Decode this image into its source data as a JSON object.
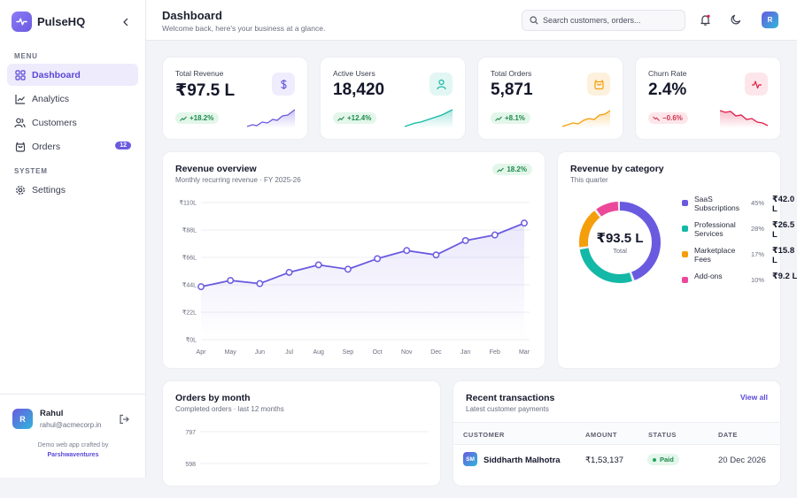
{
  "app": {
    "name": "PulseHQ"
  },
  "sidebar": {
    "menu_label": "MENU",
    "system_label": "SYSTEM",
    "items": [
      {
        "label": "Dashboard",
        "icon": "grid-icon",
        "active": true
      },
      {
        "label": "Analytics",
        "icon": "trend-chart-icon"
      },
      {
        "label": "Customers",
        "icon": "users-icon"
      },
      {
        "label": "Orders",
        "icon": "bag-icon",
        "badge": "12"
      }
    ],
    "system_items": [
      {
        "label": "Settings",
        "icon": "gear-icon"
      }
    ],
    "user": {
      "initial": "R",
      "name": "Rahul",
      "email": "rahul@acmecorp.in"
    },
    "credit_text": "Demo web app crafted by",
    "credit_link": "Parshwaventures"
  },
  "header": {
    "title": "Dashboard",
    "subtitle": "Welcome back, here's your business at a glance.",
    "search_placeholder": "Search customers, orders...",
    "avatar_initial": "R"
  },
  "kpis": [
    {
      "label": "Total Revenue",
      "value": "₹97.5 L",
      "change": "+18.2%",
      "trend": "up",
      "icon": "dollar-icon",
      "color": "#6a5ae0"
    },
    {
      "label": "Active Users",
      "value": "18,420",
      "change": "+12.4%",
      "trend": "up",
      "icon": "user-icon",
      "color": "#14b8a6"
    },
    {
      "label": "Total Orders",
      "value": "5,871",
      "change": "+8.1%",
      "trend": "up",
      "icon": "bag-icon",
      "color": "#f59e0b"
    },
    {
      "label": "Churn Rate",
      "value": "2.4%",
      "change": "−0.6%",
      "trend": "down",
      "icon": "pulse-icon",
      "color": "#e11d48"
    }
  ],
  "revenue_overview": {
    "title": "Revenue overview",
    "subtitle": "Monthly recurring revenue · FY 2025-26",
    "badge": "18.2%"
  },
  "revenue_by_category": {
    "title": "Revenue by category",
    "subtitle": "This quarter",
    "center_value": "₹93.5 L",
    "center_label": "Total"
  },
  "orders_by_month": {
    "title": "Orders by month",
    "subtitle": "Completed orders · last 12 months",
    "y_ticks": [
      "797",
      "598"
    ]
  },
  "transactions": {
    "title": "Recent transactions",
    "subtitle": "Latest customer payments",
    "view_all": "View all",
    "columns": [
      "CUSTOMER",
      "AMOUNT",
      "STATUS",
      "DATE"
    ],
    "rows": [
      {
        "initials": "SM",
        "customer": "Siddharth Malhotra",
        "amount": "₹1,53,137",
        "status": "Paid",
        "date": "20 Dec 2026"
      }
    ]
  },
  "chart_data": [
    {
      "type": "line",
      "title": "Revenue overview",
      "categories": [
        "Apr",
        "May",
        "Jun",
        "Jul",
        "Aug",
        "Sep",
        "Oct",
        "Nov",
        "Dec",
        "Jan",
        "Feb",
        "Mar"
      ],
      "y_tick_labels": [
        "₹0L",
        "₹22L",
        "₹44L",
        "₹66L",
        "₹88L",
        "₹110L"
      ],
      "ylim": [
        0,
        110
      ],
      "series": [
        {
          "values": [
            42.5,
            47.5,
            45.0,
            54.0,
            60.0,
            56.5,
            65.0,
            71.5,
            68.0,
            79.5,
            84.0,
            93.5
          ]
        }
      ],
      "grid": true,
      "color": "#6a5ae0"
    },
    {
      "type": "pie",
      "title": "Revenue by category",
      "slices": [
        {
          "label": "SaaS Subscriptions",
          "value": 45,
          "display_value": "₹42.0 L",
          "color": "#6a5ae0"
        },
        {
          "label": "Professional Services",
          "value": 28,
          "display_value": "₹26.5 L",
          "color": "#14b8a6"
        },
        {
          "label": "Marketplace Fees",
          "value": 17,
          "display_value": "₹15.8 L",
          "color": "#f59e0b"
        },
        {
          "label": "Add-ons",
          "value": 10,
          "display_value": "₹9.2 L",
          "color": "#ec4899"
        }
      ]
    }
  ]
}
